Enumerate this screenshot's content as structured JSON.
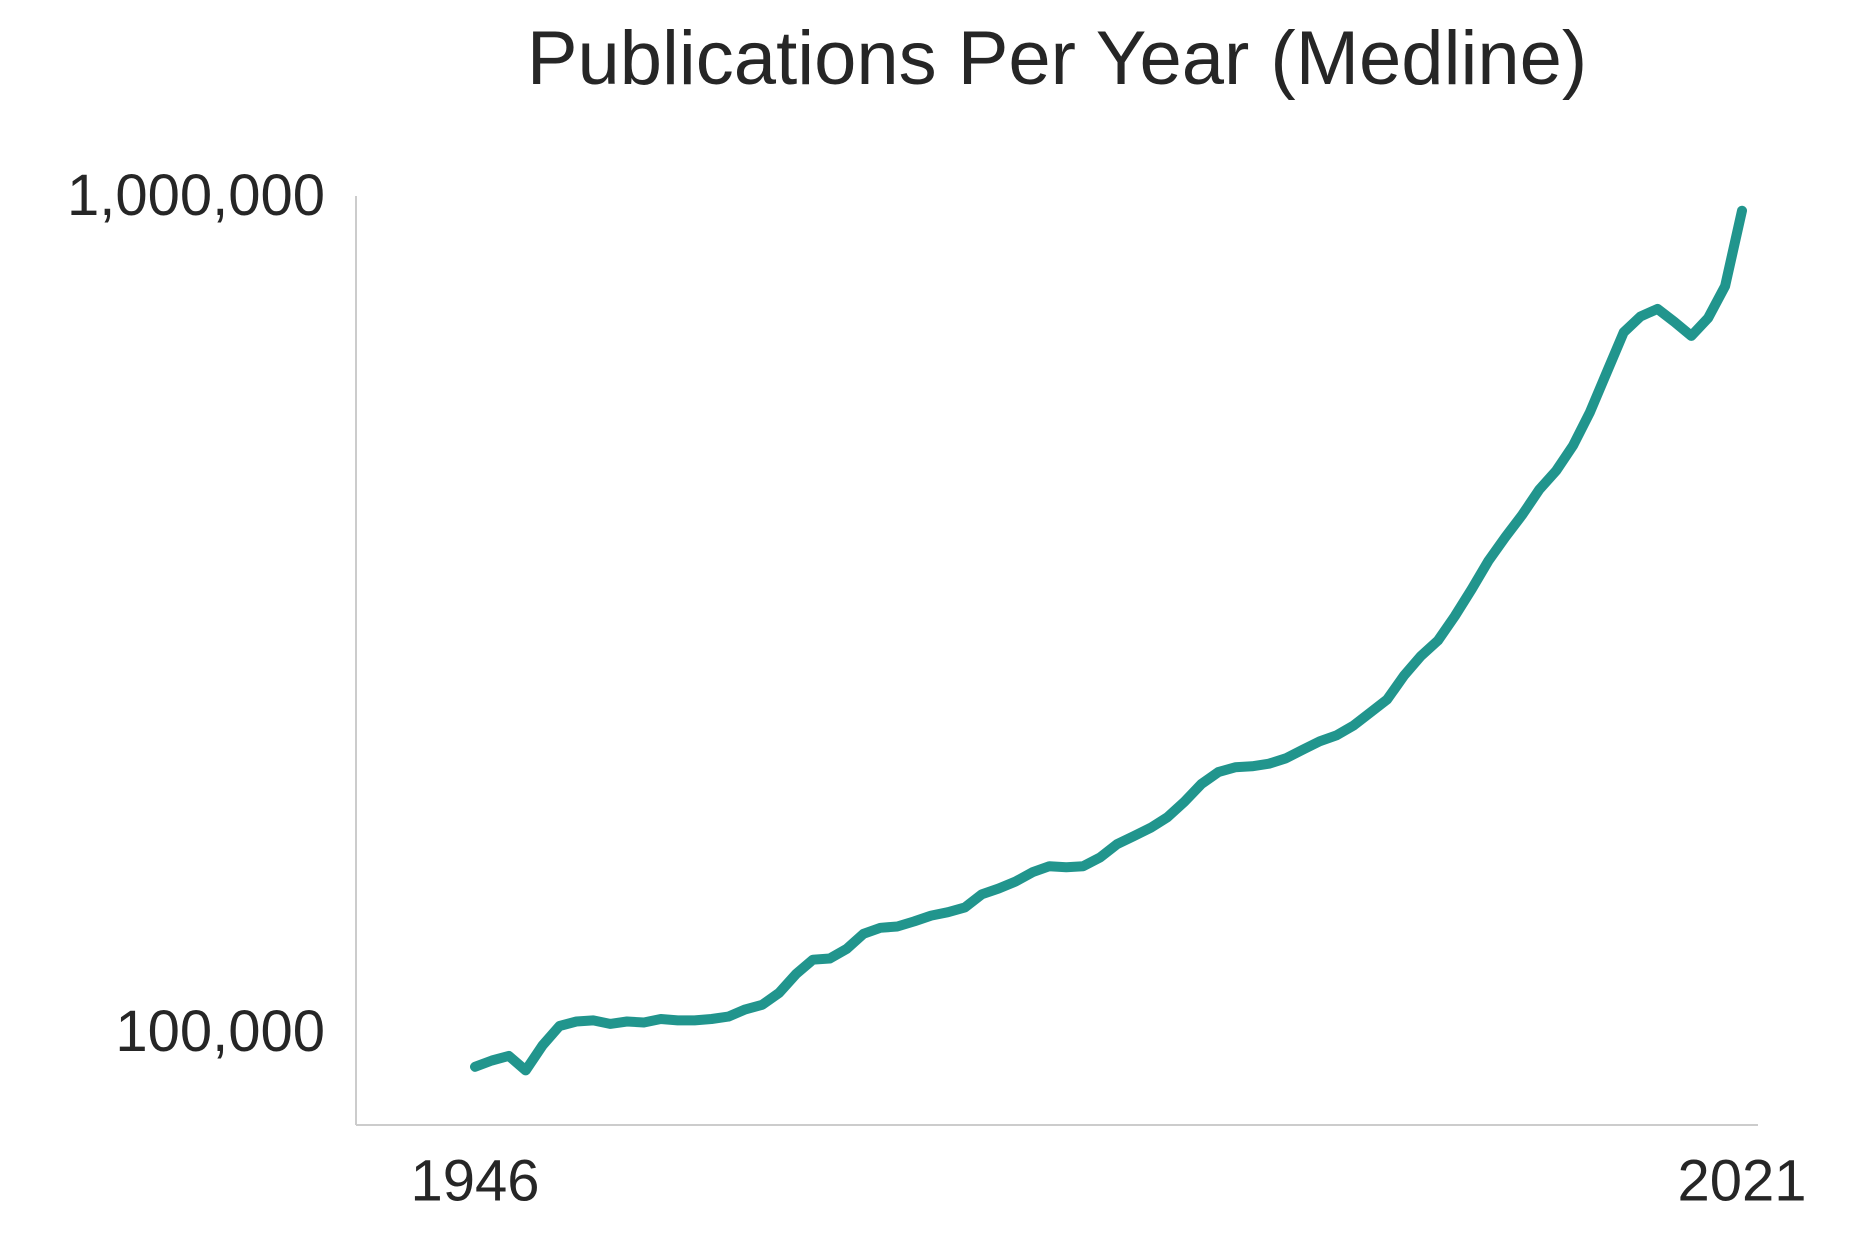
{
  "chart_data": {
    "type": "line",
    "title": "Publications Per Year (Medline)",
    "x": [
      1946,
      1947,
      1948,
      1949,
      1950,
      1951,
      1952,
      1953,
      1954,
      1955,
      1956,
      1957,
      1958,
      1959,
      1960,
      1961,
      1962,
      1963,
      1964,
      1965,
      1966,
      1967,
      1968,
      1969,
      1970,
      1971,
      1972,
      1973,
      1974,
      1975,
      1976,
      1977,
      1978,
      1979,
      1980,
      1981,
      1982,
      1983,
      1984,
      1985,
      1986,
      1987,
      1988,
      1989,
      1990,
      1991,
      1992,
      1993,
      1994,
      1995,
      1996,
      1997,
      1998,
      1999,
      2000,
      2001,
      2002,
      2003,
      2004,
      2005,
      2006,
      2007,
      2008,
      2009,
      2010,
      2011,
      2012,
      2013,
      2014,
      2015,
      2016,
      2017,
      2018,
      2019,
      2020,
      2021
    ],
    "series": [
      {
        "name": "Publications",
        "color": "#21958d",
        "values": [
          91800,
          93400,
          94600,
          90900,
          97400,
          102700,
          104000,
          104300,
          103300,
          104000,
          103700,
          104700,
          104300,
          104300,
          104700,
          105400,
          107500,
          108900,
          112500,
          118500,
          123300,
          123700,
          127000,
          132400,
          134600,
          135100,
          137000,
          139200,
          140500,
          142400,
          147600,
          150000,
          152900,
          156900,
          159500,
          159000,
          159500,
          163400,
          169400,
          173300,
          177300,
          182600,
          190500,
          200000,
          206700,
          209400,
          210000,
          211500,
          214700,
          219800,
          225000,
          228700,
          234900,
          243500,
          252500,
          269700,
          284600,
          296900,
          317500,
          342000,
          370000,
          395000,
          420000,
          450000,
          474000,
          508000,
          557000,
          622000,
          694000,
          725000,
          740000,
          714000,
          687000,
          722000,
          788000,
          970000
        ]
      }
    ],
    "xlim": [
      1946,
      2021
    ],
    "xticks": [
      1946,
      2021
    ],
    "ylim": [
      78200,
      1010000
    ],
    "yscale": "log",
    "yticks": [
      {
        "value": 100000,
        "label": "100,000"
      },
      {
        "value": 1000000,
        "label": "1,000,000"
      }
    ],
    "grid": false
  }
}
